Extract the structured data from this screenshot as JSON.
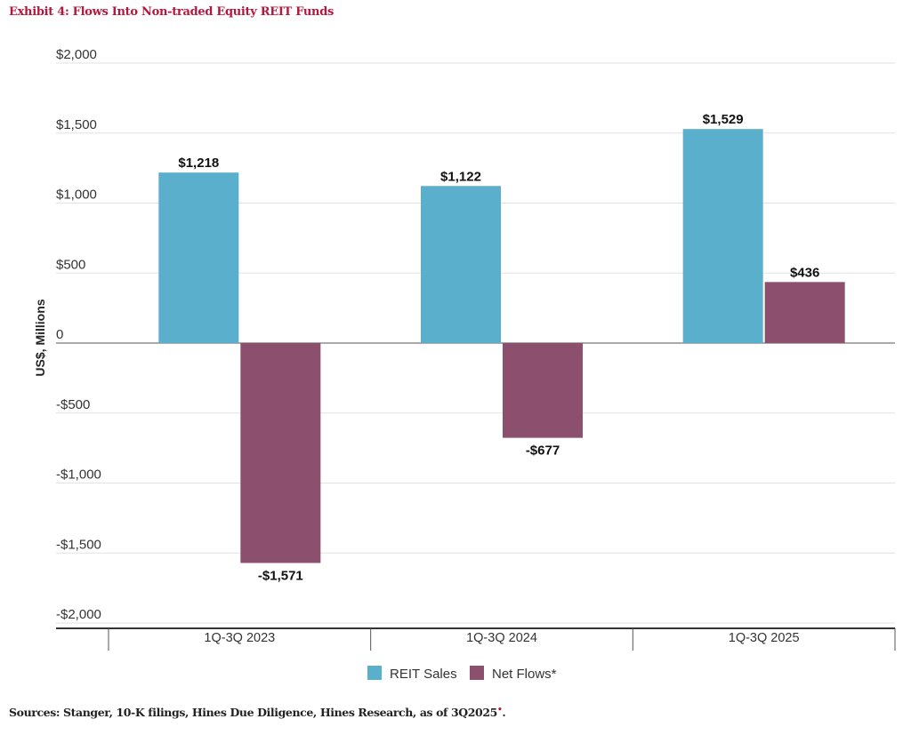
{
  "title": "Exhibit 4: Flows Into Non-traded Equity REIT Funds",
  "source": "Sources: Stanger, 10-K filings, Hines Due Diligence, Hines Research, as of 3Q2025",
  "source_mark": "•",
  "source_end": ".",
  "chart_data": {
    "type": "bar",
    "title": "Exhibit 4: Flows Into Non-traded Equity REIT Funds",
    "xlabel": "",
    "ylabel": "US$, Millions",
    "ylim": [
      -2000,
      2000
    ],
    "yticks": [
      2000,
      1500,
      1000,
      500,
      0,
      -500,
      -1000,
      -1500,
      -2000
    ],
    "ytick_labels": [
      "$2,000",
      "$1,500",
      "$1,000",
      "$500",
      "0",
      "-$500",
      "-$1,000",
      "-$1,500",
      "-$2,000"
    ],
    "grid": true,
    "legend": "bottom-center",
    "categories": [
      "1Q-3Q 2023",
      "1Q-3Q 2024",
      "1Q-3Q 2025"
    ],
    "series": [
      {
        "name": "REIT Sales",
        "color": "#5aafcd",
        "values": [
          1218,
          1122,
          1529
        ],
        "labels": [
          "$1,218",
          "$1,122",
          "$1,529"
        ]
      },
      {
        "name": "Net Flows*",
        "color": "#8c4f6e",
        "values": [
          -1571,
          -677,
          436
        ],
        "labels": [
          "-$1,571",
          "-$677",
          "$436"
        ]
      }
    ]
  }
}
